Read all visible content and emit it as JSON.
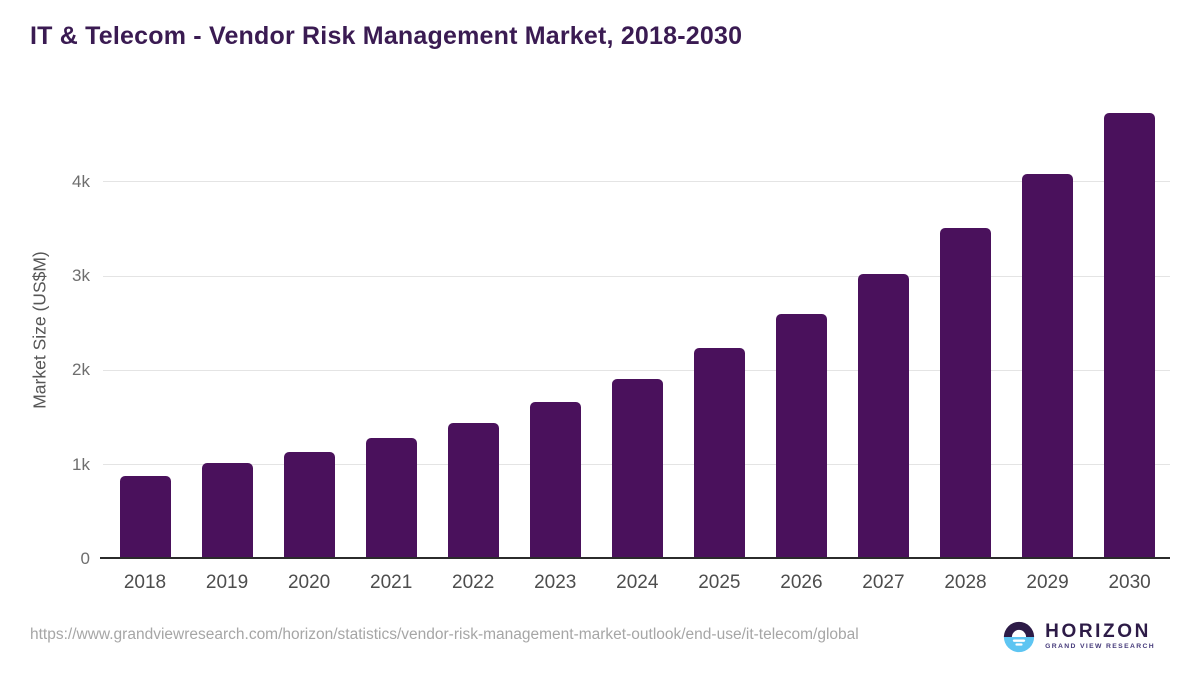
{
  "page": {
    "title": "IT & Telecom - Vendor Risk Management Market, 2018-2030"
  },
  "chart_data": {
    "type": "bar",
    "title": "IT & Telecom - Vendor Risk Management Market, 2018-2030",
    "categories": [
      "2018",
      "2019",
      "2020",
      "2021",
      "2022",
      "2023",
      "2024",
      "2025",
      "2026",
      "2027",
      "2028",
      "2029",
      "2030"
    ],
    "values": [
      880,
      1020,
      1140,
      1280,
      1440,
      1670,
      1915,
      2235,
      2595,
      3020,
      3515,
      4085,
      4730
    ],
    "xlabel": "",
    "ylabel": "Market Size (US$M)",
    "ylim": [
      0,
      4870
    ],
    "yticks": [
      {
        "label": "0",
        "value": 0
      },
      {
        "label": "1k",
        "value": 1000
      },
      {
        "label": "2k",
        "value": 2000
      },
      {
        "label": "3k",
        "value": 3000
      },
      {
        "label": "4k",
        "value": 4000
      }
    ],
    "grid": "horizontal",
    "legend": "none",
    "bar_color": "#4a115c"
  },
  "footer": {
    "source_url": "https://www.grandviewresearch.com/horizon/statistics/vendor-risk-management-market-outlook/end-use/it-telecom/global",
    "logo": {
      "brand": "HORIZON",
      "subtitle": "GRAND VIEW RESEARCH",
      "icon": "horizon-sun-icon"
    }
  },
  "colors": {
    "title": "#3a1b52",
    "bar": "#4a115c",
    "gridline": "#e4e4e4",
    "axis": "#2b2b2b",
    "ytick_label": "#6e6e6e",
    "xtick_label": "#4d4d4d",
    "url_text": "#a6a6a6",
    "logo_purple": "#2d1b47",
    "logo_blue": "#5ec5f2"
  }
}
